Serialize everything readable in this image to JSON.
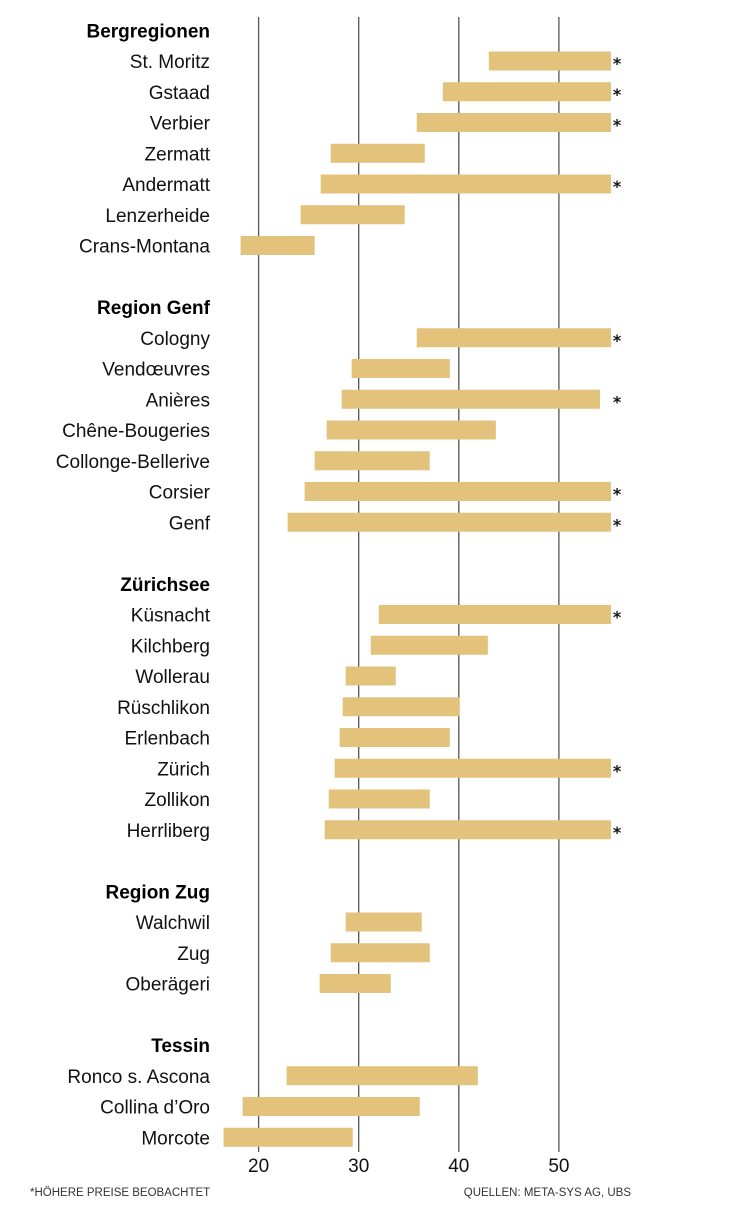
{
  "chart_data": {
    "type": "bar",
    "orientation": "horizontal-range",
    "x_ticks": [
      20,
      30,
      40,
      50
    ],
    "xlim": [
      16,
      57
    ],
    "colors": {
      "bar": "#e3c27c",
      "grid": "#555555",
      "text": "#111111"
    },
    "groups": [
      {
        "name": "Bergregionen",
        "items": [
          {
            "label": "St. Moritz",
            "start": 43,
            "end": 55.2,
            "higher": true,
            "mark": "*"
          },
          {
            "label": "Gstaad",
            "start": 38.4,
            "end": 55.2,
            "higher": true,
            "mark": "*"
          },
          {
            "label": "Verbier",
            "start": 35.8,
            "end": 55.2,
            "higher": true,
            "mark": "*"
          },
          {
            "label": "Zermatt",
            "start": 27.2,
            "end": 36.6,
            "higher": false,
            "mark": ""
          },
          {
            "label": "Andermatt",
            "start": 26.2,
            "end": 55.2,
            "higher": true,
            "mark": "*"
          },
          {
            "label": "Lenzerheide",
            "start": 24.2,
            "end": 34.6,
            "higher": false,
            "mark": ""
          },
          {
            "label": "Crans-Montana",
            "start": 18.2,
            "end": 25.6,
            "higher": false,
            "mark": ""
          }
        ]
      },
      {
        "name": "Region Genf",
        "items": [
          {
            "label": "Cologny",
            "start": 35.8,
            "end": 55.2,
            "higher": true,
            "mark": "*"
          },
          {
            "label": "Vendœuvres",
            "start": 29.3,
            "end": 39.1,
            "higher": false,
            "mark": ""
          },
          {
            "label": "Anières",
            "start": 28.3,
            "end": 54.1,
            "higher": true,
            "mark": "*"
          },
          {
            "label": "Chêne-Bougeries",
            "start": 26.8,
            "end": 43.7,
            "higher": false,
            "mark": ""
          },
          {
            "label": "Collonge-Bellerive",
            "start": 25.6,
            "end": 37.1,
            "higher": false,
            "mark": ""
          },
          {
            "label": "Corsier",
            "start": 24.6,
            "end": 55.2,
            "higher": true,
            "mark": "*"
          },
          {
            "label": "Genf",
            "start": 22.9,
            "end": 55.2,
            "higher": true,
            "mark": "*"
          }
        ]
      },
      {
        "name": "Zürichsee",
        "items": [
          {
            "label": "Küsnacht",
            "start": 32,
            "end": 55.2,
            "higher": true,
            "mark": "*"
          },
          {
            "label": "Kilchberg",
            "start": 31.2,
            "end": 42.9,
            "higher": false,
            "mark": ""
          },
          {
            "label": "Wollerau",
            "start": 28.7,
            "end": 33.7,
            "higher": false,
            "mark": ""
          },
          {
            "label": "Rüschlikon",
            "start": 28.4,
            "end": 40.1,
            "higher": false,
            "mark": ""
          },
          {
            "label": "Erlenbach",
            "start": 28.1,
            "end": 39.1,
            "higher": false,
            "mark": ""
          },
          {
            "label": "Zürich",
            "start": 27.6,
            "end": 55.2,
            "higher": true,
            "mark": "*"
          },
          {
            "label": "Zollikon",
            "start": 27,
            "end": 37.1,
            "higher": false,
            "mark": ""
          },
          {
            "label": "Herrliberg",
            "start": 26.6,
            "end": 55.2,
            "higher": true,
            "mark": "*"
          }
        ]
      },
      {
        "name": "Region Zug",
        "items": [
          {
            "label": "Walchwil",
            "start": 28.7,
            "end": 36.3,
            "higher": false,
            "mark": ""
          },
          {
            "label": "Zug",
            "start": 27.2,
            "end": 37.1,
            "higher": false,
            "mark": ""
          },
          {
            "label": "Oberägeri",
            "start": 26.1,
            "end": 33.2,
            "higher": false,
            "mark": ""
          }
        ]
      },
      {
        "name": "Tessin",
        "items": [
          {
            "label": "Ronco s. Ascona",
            "start": 22.8,
            "end": 41.9,
            "higher": false,
            "mark": ""
          },
          {
            "label": "Collina d’Oro",
            "start": 18.4,
            "end": 36.1,
            "higher": false,
            "mark": ""
          },
          {
            "label": "Morcote",
            "start": 16.5,
            "end": 29.4,
            "higher": false,
            "mark": ""
          }
        ]
      }
    ]
  },
  "footer": {
    "note": "*HÖHERE PREISE BEOBACHTET",
    "sources": "QUELLEN: META-SYS AG, UBS"
  }
}
